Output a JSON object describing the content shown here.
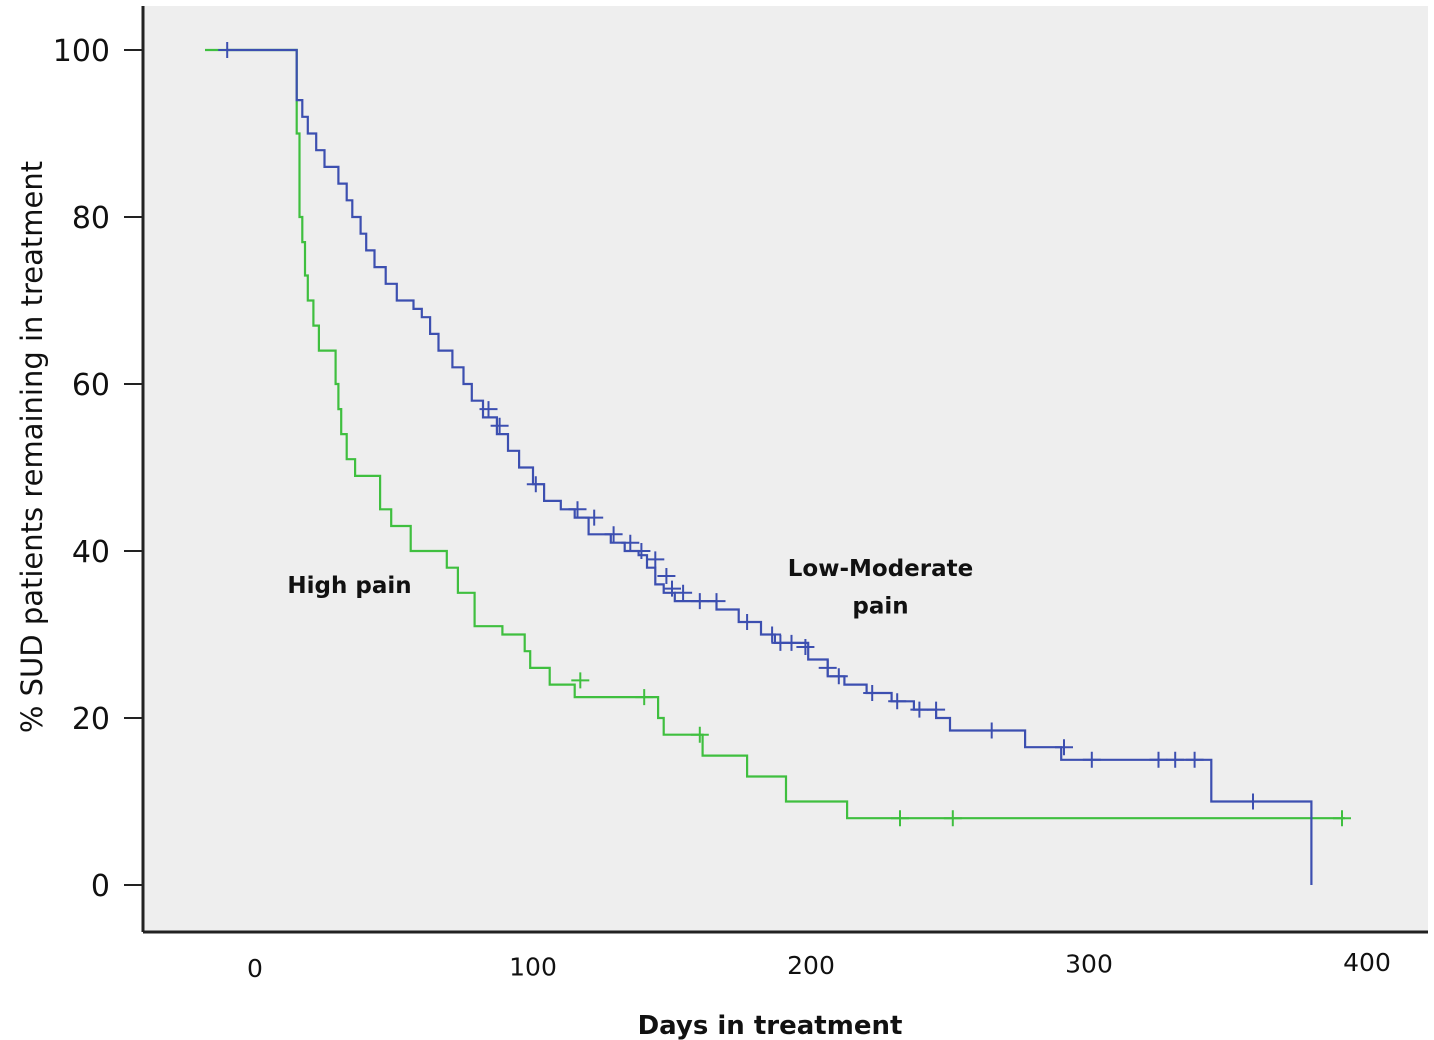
{
  "chart_data": {
    "type": "line",
    "title": "",
    "xlabel": "Days in treatment",
    "ylabel": "% SUD patients remaining in treatment",
    "xlim": [
      -40,
      405
    ],
    "ylim": [
      -6,
      105
    ],
    "x_ticks": [
      "0",
      "100",
      "200",
      "300",
      "400"
    ],
    "y_ticks": [
      "0",
      "20",
      "40",
      "60",
      "80",
      "100"
    ],
    "grid": false,
    "legend": "none",
    "colors": {
      "plot_background": "#eeeeee",
      "axis": "#222222",
      "high_pain": "#3fbf3f",
      "low_moderate_pain": "#3c4fb0"
    },
    "annotations": [
      {
        "text": "High pain",
        "x": 34,
        "y": 35
      },
      {
        "text": "Low-Moderate",
        "x": 225,
        "y": 37
      },
      {
        "text": "pain",
        "x": 225,
        "y": 32.5
      }
    ],
    "series": [
      {
        "key": "high_pain",
        "step": [
          [
            -18,
            100
          ],
          [
            14,
            100
          ],
          [
            15,
            90
          ],
          [
            16,
            80
          ],
          [
            17,
            77
          ],
          [
            18,
            73
          ],
          [
            19,
            70
          ],
          [
            21,
            67
          ],
          [
            23,
            64
          ],
          [
            29,
            60
          ],
          [
            30,
            57
          ],
          [
            31,
            54
          ],
          [
            33,
            51
          ],
          [
            36,
            49
          ],
          [
            45,
            45
          ],
          [
            49,
            43
          ],
          [
            56,
            40
          ],
          [
            69,
            38
          ],
          [
            73,
            35
          ],
          [
            79,
            31
          ],
          [
            89,
            30
          ],
          [
            97,
            28
          ],
          [
            99,
            26
          ],
          [
            106,
            24
          ],
          [
            115,
            22.5
          ],
          [
            142,
            22.5
          ],
          [
            145,
            20
          ],
          [
            147,
            18
          ],
          [
            161,
            15.5
          ],
          [
            177,
            13
          ],
          [
            191,
            10
          ],
          [
            213,
            8
          ],
          [
            392,
            8
          ]
        ],
        "censored": [
          [
            117,
            24.5
          ],
          [
            140,
            22.5
          ],
          [
            160,
            18
          ],
          [
            232,
            8
          ],
          [
            251,
            8
          ],
          [
            391,
            8
          ]
        ]
      },
      {
        "key": "low_moderate_pain",
        "step": [
          [
            -10,
            100
          ],
          [
            14,
            100
          ],
          [
            15,
            94
          ],
          [
            17,
            92
          ],
          [
            19,
            90
          ],
          [
            22,
            88
          ],
          [
            25,
            86
          ],
          [
            30,
            84
          ],
          [
            33,
            82
          ],
          [
            35,
            80
          ],
          [
            38,
            78
          ],
          [
            40,
            76
          ],
          [
            43,
            74
          ],
          [
            47,
            72
          ],
          [
            51,
            70
          ],
          [
            57,
            69
          ],
          [
            60,
            68
          ],
          [
            63,
            66
          ],
          [
            66,
            64
          ],
          [
            71,
            62
          ],
          [
            75,
            60
          ],
          [
            78,
            58
          ],
          [
            82,
            56
          ],
          [
            87,
            54
          ],
          [
            91,
            52
          ],
          [
            95,
            50
          ],
          [
            100,
            48
          ],
          [
            104,
            46
          ],
          [
            110,
            45
          ],
          [
            115,
            44
          ],
          [
            120,
            42
          ],
          [
            128,
            41
          ],
          [
            133,
            40
          ],
          [
            138,
            39.5
          ],
          [
            141,
            38
          ],
          [
            144,
            36
          ],
          [
            147,
            35
          ],
          [
            151,
            34
          ],
          [
            166,
            33
          ],
          [
            174,
            31.5
          ],
          [
            182,
            30
          ],
          [
            187,
            29
          ],
          [
            199,
            27
          ],
          [
            206,
            25
          ],
          [
            212,
            24
          ],
          [
            220,
            23
          ],
          [
            229,
            22
          ],
          [
            237,
            21
          ],
          [
            245,
            20
          ],
          [
            250,
            18.5
          ],
          [
            264,
            18.5
          ],
          [
            277,
            16.5
          ],
          [
            290,
            15
          ],
          [
            342,
            15
          ],
          [
            344,
            10
          ],
          [
            380,
            10
          ],
          [
            380,
            0
          ]
        ],
        "censored": [
          [
            -10,
            100
          ],
          [
            84,
            57
          ],
          [
            88,
            55
          ],
          [
            101,
            48
          ],
          [
            116,
            45
          ],
          [
            122,
            44
          ],
          [
            129,
            42
          ],
          [
            135,
            41
          ],
          [
            139,
            40
          ],
          [
            144,
            39
          ],
          [
            148,
            37
          ],
          [
            150,
            35.5
          ],
          [
            154,
            35
          ],
          [
            160,
            34
          ],
          [
            166,
            34
          ],
          [
            177,
            31.5
          ],
          [
            186,
            30
          ],
          [
            189,
            29
          ],
          [
            193,
            29
          ],
          [
            198,
            28.5
          ],
          [
            206,
            26
          ],
          [
            210,
            25
          ],
          [
            222,
            23
          ],
          [
            231,
            22
          ],
          [
            239,
            21
          ],
          [
            245,
            21
          ],
          [
            265,
            18.5
          ],
          [
            291,
            16.5
          ],
          [
            301,
            15
          ],
          [
            325,
            15
          ],
          [
            331,
            15
          ],
          [
            338,
            15
          ],
          [
            359,
            10
          ]
        ]
      }
    ]
  }
}
